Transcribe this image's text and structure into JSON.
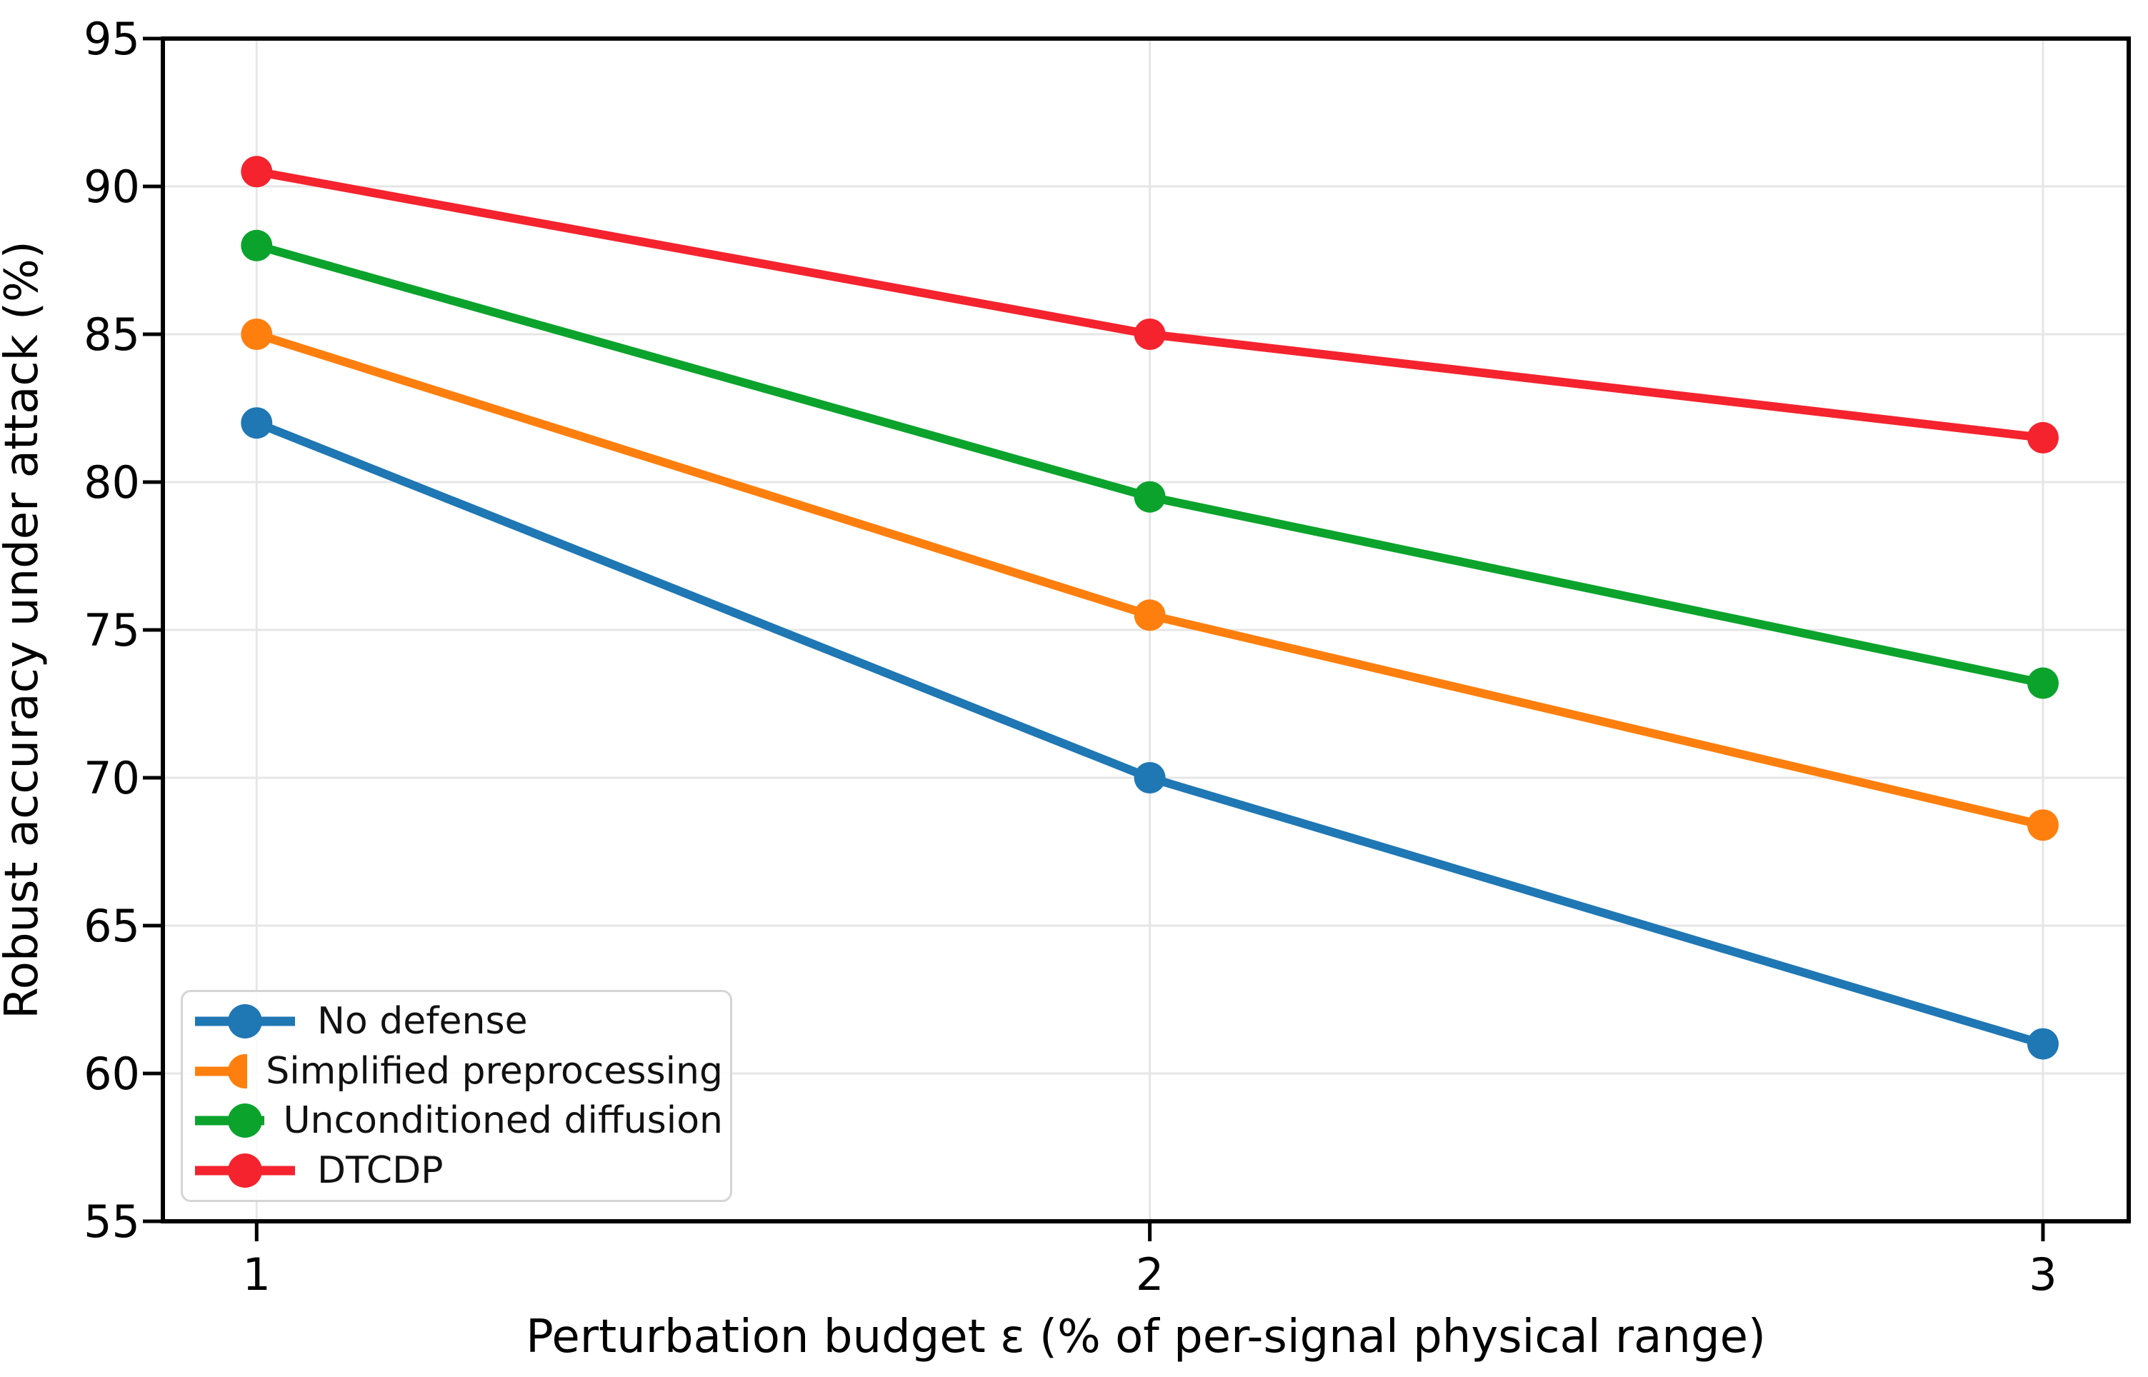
{
  "chart_data": {
    "type": "line",
    "xlabel": "Perturbation budget ε (% of per-signal physical range)",
    "ylabel": "Robust accuracy under attack (%)",
    "x": [
      1,
      2,
      3
    ],
    "xticks": [
      1,
      2,
      3
    ],
    "yticks": [
      55,
      60,
      65,
      70,
      75,
      80,
      85,
      90,
      95
    ],
    "ylim": [
      55,
      95
    ],
    "grid": true,
    "legend_position": "lower left",
    "grid_color": "#e6e6e6",
    "axis_color": "#000000",
    "series": [
      {
        "name": "No defense",
        "color": "#1f77b4",
        "values": [
          82,
          70,
          61
        ]
      },
      {
        "name": "Simplified preprocessing",
        "color": "#ff7f0e",
        "values": [
          85,
          75.5,
          68.4
        ]
      },
      {
        "name": "Unconditioned diffusion",
        "color": "#0ba32c",
        "values": [
          88,
          79.5,
          73.2
        ]
      },
      {
        "name": "DTCDP",
        "color": "#f4232e",
        "values": [
          90.5,
          85,
          81.5
        ]
      }
    ]
  }
}
